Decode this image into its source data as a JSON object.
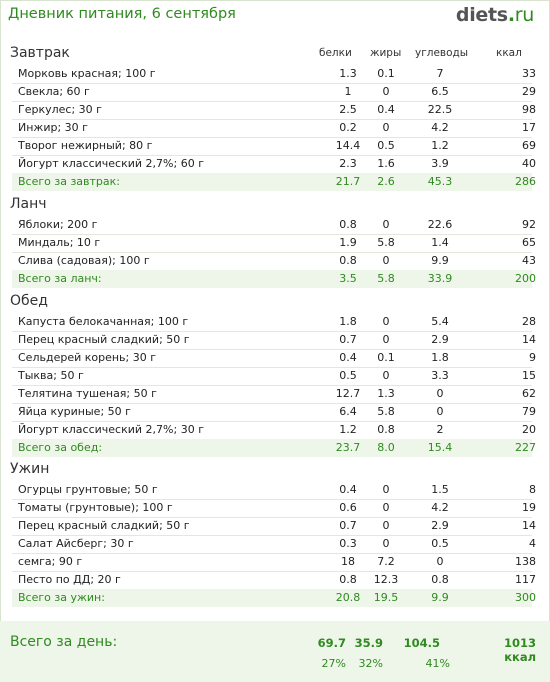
{
  "title": "Дневник питания, 6 сентября",
  "logo": {
    "brand": "diets",
    "tld": "ru"
  },
  "columns": {
    "protein": "белки",
    "fat": "жиры",
    "carbs": "углеводы",
    "kcal": "ккал"
  },
  "meals": [
    {
      "name": "Завтрак",
      "items": [
        {
          "name": "Морковь красная; 100 г",
          "p": "1.3",
          "f": "0.1",
          "c": "7",
          "k": "33"
        },
        {
          "name": "Свекла; 60 г",
          "p": "1",
          "f": "0",
          "c": "6.5",
          "k": "29"
        },
        {
          "name": "Геркулес; 30 г",
          "p": "2.5",
          "f": "0.4",
          "c": "22.5",
          "k": "98"
        },
        {
          "name": "Инжир; 30 г",
          "p": "0.2",
          "f": "0",
          "c": "4.2",
          "k": "17"
        },
        {
          "name": "Творог нежирный; 80 г",
          "p": "14.4",
          "f": "0.5",
          "c": "1.2",
          "k": "69"
        },
        {
          "name": "Йогурт классический 2,7%; 60 г",
          "p": "2.3",
          "f": "1.6",
          "c": "3.9",
          "k": "40"
        }
      ],
      "total": {
        "name": "Всего за завтрак:",
        "p": "21.7",
        "f": "2.6",
        "c": "45.3",
        "k": "286"
      }
    },
    {
      "name": "Ланч",
      "items": [
        {
          "name": "Яблоки; 200 г",
          "p": "0.8",
          "f": "0",
          "c": "22.6",
          "k": "92"
        },
        {
          "name": "Миндаль; 10 г",
          "p": "1.9",
          "f": "5.8",
          "c": "1.4",
          "k": "65"
        },
        {
          "name": "Слива (садовая); 100 г",
          "p": "0.8",
          "f": "0",
          "c": "9.9",
          "k": "43"
        }
      ],
      "total": {
        "name": "Всего за ланч:",
        "p": "3.5",
        "f": "5.8",
        "c": "33.9",
        "k": "200"
      }
    },
    {
      "name": "Обед",
      "items": [
        {
          "name": "Капуста белокачанная; 100 г",
          "p": "1.8",
          "f": "0",
          "c": "5.4",
          "k": "28"
        },
        {
          "name": "Перец красный сладкий; 50 г",
          "p": "0.7",
          "f": "0",
          "c": "2.9",
          "k": "14"
        },
        {
          "name": "Сельдерей корень; 30 г",
          "p": "0.4",
          "f": "0.1",
          "c": "1.8",
          "k": "9"
        },
        {
          "name": "Тыква; 50 г",
          "p": "0.5",
          "f": "0",
          "c": "3.3",
          "k": "15"
        },
        {
          "name": "Телятина тушеная; 50 г",
          "p": "12.7",
          "f": "1.3",
          "c": "0",
          "k": "62"
        },
        {
          "name": "Яйца куриные; 50 г",
          "p": "6.4",
          "f": "5.8",
          "c": "0",
          "k": "79"
        },
        {
          "name": "Йогурт классический 2,7%; 30 г",
          "p": "1.2",
          "f": "0.8",
          "c": "2",
          "k": "20"
        }
      ],
      "total": {
        "name": "Всего за обед:",
        "p": "23.7",
        "f": "8.0",
        "c": "15.4",
        "k": "227"
      }
    },
    {
      "name": "Ужин",
      "items": [
        {
          "name": "Огурцы грунтовые; 50 г",
          "p": "0.4",
          "f": "0",
          "c": "1.5",
          "k": "8"
        },
        {
          "name": "Томаты (грунтовые); 100 г",
          "p": "0.6",
          "f": "0",
          "c": "4.2",
          "k": "19"
        },
        {
          "name": "Перец красный сладкий; 50 г",
          "p": "0.7",
          "f": "0",
          "c": "2.9",
          "k": "14"
        },
        {
          "name": "Салат Айсберг; 30 г",
          "p": "0.3",
          "f": "0",
          "c": "0.5",
          "k": "4"
        },
        {
          "name": "семга; 90 г",
          "p": "18",
          "f": "7.2",
          "c": "0",
          "k": "138"
        },
        {
          "name": "Песто по ДД; 20 г",
          "p": "0.8",
          "f": "12.3",
          "c": "0.8",
          "k": "117"
        }
      ],
      "total": {
        "name": "Всего за ужин:",
        "p": "20.8",
        "f": "19.5",
        "c": "9.9",
        "k": "300"
      }
    }
  ],
  "day_total": {
    "label": "Всего за день:",
    "p": "69.7",
    "f": "35.9",
    "c": "104.5",
    "k": "1013 ккал",
    "p_pct": "27%",
    "f_pct": "32%",
    "c_pct": "41%"
  },
  "colors": {
    "accent": "#2f8a1f",
    "total_bg": "#eef6ea",
    "row_border": "#e2e8de"
  }
}
